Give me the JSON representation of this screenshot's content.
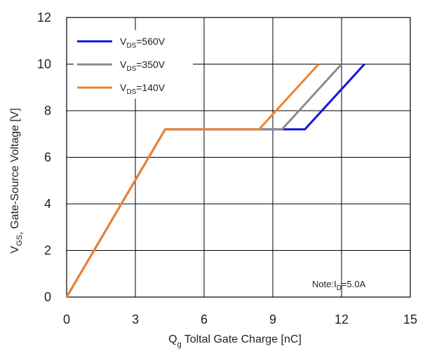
{
  "chart_data": {
    "type": "line",
    "xlabel": "Toltal Gate Charge [nC]",
    "xlabel_symbol": "Q",
    "xlabel_sub": "g",
    "ylabel": "Gate-Source Voltage [V]",
    "ylabel_symbol": "V",
    "ylabel_sub": "GS",
    "ylabel_sep": ",",
    "xlim": [
      0,
      15
    ],
    "ylim": [
      0,
      12
    ],
    "xticks": [
      0,
      3,
      6,
      9,
      12,
      15
    ],
    "yticks": [
      0,
      2,
      4,
      6,
      8,
      10,
      12
    ],
    "grid": true,
    "legend_position": "top-left",
    "series": [
      {
        "name_main": "V",
        "name_sub": "DS",
        "name_tail": "=560V",
        "color": "#1515d6",
        "points": [
          [
            0,
            0
          ],
          [
            4.3,
            7.2
          ],
          [
            10.4,
            7.2
          ],
          [
            13.0,
            10.0
          ]
        ]
      },
      {
        "name_main": "V",
        "name_sub": "DS",
        "name_tail": "=350V",
        "color": "#8c8c8c",
        "points": [
          [
            0,
            0
          ],
          [
            4.3,
            7.2
          ],
          [
            9.4,
            7.2
          ],
          [
            12.0,
            10.0
          ]
        ]
      },
      {
        "name_main": "V",
        "name_sub": "DS",
        "name_tail": "=140V",
        "color": "#ee8330",
        "points": [
          [
            0,
            0
          ],
          [
            4.3,
            7.2
          ],
          [
            8.4,
            7.2
          ],
          [
            11.0,
            10.0
          ]
        ]
      }
    ],
    "note": {
      "prefix": "Note:I",
      "sub": "D",
      "suffix": "=5.0A"
    }
  }
}
